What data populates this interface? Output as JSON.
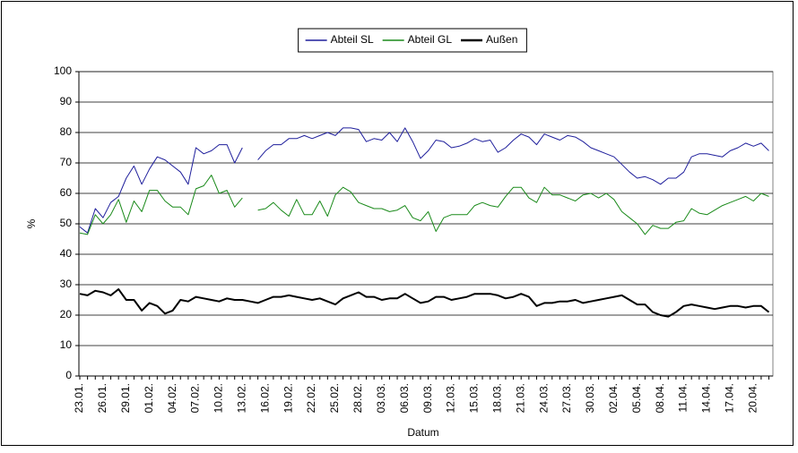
{
  "chart_data": {
    "type": "line",
    "x_label": "Datum",
    "y_label": "%",
    "categories": [
      "23.01.",
      null,
      null,
      "26.01.",
      null,
      null,
      "29.01.",
      null,
      null,
      "01.02.",
      null,
      null,
      "04.02.",
      null,
      null,
      "07.02.",
      null,
      null,
      "10.02.",
      null,
      null,
      "13.02.",
      null,
      null,
      "16.02.",
      null,
      null,
      "19.02.",
      null,
      null,
      "22.02.",
      null,
      null,
      "25.02.",
      null,
      null,
      "28.02.",
      null,
      null,
      "03.03.",
      null,
      null,
      "06.03.",
      null,
      null,
      "09.03.",
      null,
      null,
      "12.03.",
      null,
      null,
      "15.03.",
      null,
      null,
      "18.03.",
      null,
      null,
      "21.03.",
      null,
      null,
      "24.03.",
      null,
      null,
      "27.03.",
      null,
      null,
      "30.03.",
      null,
      null,
      "02.04.",
      null,
      null,
      "05.04.",
      null,
      null,
      "08.04.",
      null,
      null,
      "11.04.",
      null,
      null,
      "14.04.",
      null,
      null,
      "17.04.",
      null,
      null,
      "20.04.",
      null,
      null
    ],
    "series": [
      {
        "name": "Abteil SL",
        "color": "#1f1f9c",
        "width": 1,
        "values": [
          49,
          47,
          55,
          52,
          57,
          59,
          65,
          69,
          63,
          68,
          72,
          71,
          69,
          67,
          63,
          75,
          73,
          74,
          76,
          76,
          70,
          75,
          null,
          71,
          74,
          76,
          76,
          78,
          78,
          79,
          78,
          79,
          80,
          79,
          81.5,
          81.5,
          81,
          77,
          78,
          77.5,
          80,
          77,
          81.5,
          77,
          71.5,
          74,
          77.5,
          77,
          75,
          75.5,
          76.5,
          78,
          77,
          77.5,
          73.5,
          75,
          77.5,
          79.5,
          78.5,
          76,
          79.5,
          78.5,
          77.5,
          79,
          78.5,
          77,
          75,
          74,
          73,
          72,
          69.5,
          67,
          65,
          65.5,
          64.5,
          63,
          65,
          65,
          67,
          72,
          73,
          73,
          72.5,
          72,
          74,
          75,
          76.5,
          75.5,
          76.5,
          74
        ]
      },
      {
        "name": "Abteil GL",
        "color": "#1a8a1a",
        "width": 1,
        "values": [
          47,
          46.5,
          53,
          50,
          53,
          58,
          50.5,
          57.5,
          54,
          61,
          61,
          57.5,
          55.5,
          55.5,
          53,
          61.5,
          62.5,
          66,
          60,
          61,
          55.5,
          58.5,
          null,
          54.5,
          55,
          57,
          54.5,
          52.5,
          58,
          53,
          53,
          57.5,
          52.5,
          59.5,
          62,
          60.5,
          57,
          56,
          55,
          55,
          54,
          54.5,
          56,
          52,
          51,
          54,
          47.5,
          52,
          53,
          53,
          53,
          56,
          57,
          56,
          55.5,
          59,
          62,
          62,
          58.5,
          57,
          62,
          59.5,
          59.5,
          58.5,
          57.5,
          59.5,
          60,
          58.5,
          60,
          58,
          54,
          52,
          50,
          46.5,
          49.5,
          48.5,
          48.5,
          50.5,
          51,
          55,
          53.5,
          53,
          54.5,
          56,
          57,
          58,
          59,
          57.5,
          60,
          59
        ]
      },
      {
        "name": "Außen",
        "color": "#000000",
        "width": 2,
        "values": [
          27,
          26.5,
          28,
          27.5,
          26.5,
          28.5,
          25,
          25,
          21.5,
          24,
          23,
          20.5,
          21.5,
          25,
          24.5,
          26,
          25.5,
          25,
          24.5,
          25.5,
          25,
          25,
          24.5,
          24,
          25,
          26,
          26,
          26.5,
          26,
          25.5,
          25,
          25.5,
          24.5,
          23.5,
          25.5,
          26.5,
          27.5,
          26,
          26,
          25,
          25.5,
          25.5,
          27,
          25.5,
          24,
          24.5,
          26,
          26,
          25,
          25.5,
          26,
          27,
          27,
          27,
          26.5,
          25.5,
          26,
          27,
          26,
          23,
          24,
          24,
          24.5,
          24.5,
          25,
          24,
          24.5,
          25,
          25.5,
          26,
          26.5,
          25,
          23.5,
          23.5,
          21,
          20,
          19.5,
          21,
          23,
          23.5,
          23,
          22.5,
          22,
          22.5,
          23,
          23,
          22.5,
          23,
          23,
          21
        ]
      }
    ],
    "ylim": [
      0,
      100
    ],
    "yticks": [
      0,
      10,
      20,
      30,
      40,
      50,
      60,
      70,
      80,
      90,
      100
    ],
    "grid": true,
    "legend": "top"
  }
}
